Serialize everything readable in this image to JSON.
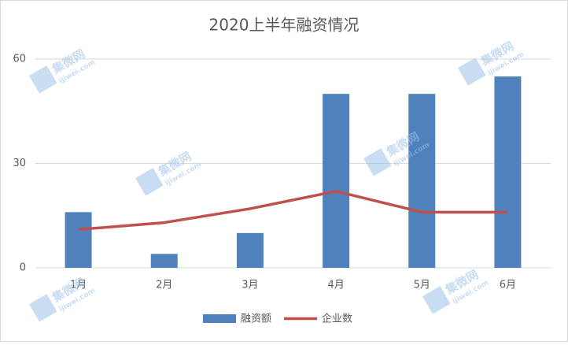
{
  "chart_data": {
    "type": "combo",
    "title": "2020上半年融资情况",
    "categories": [
      "1月",
      "2月",
      "3月",
      "4月",
      "5月",
      "6月"
    ],
    "series": [
      {
        "name": "融资额",
        "type": "bar",
        "color": "#4f81bd",
        "values": [
          16,
          4,
          10,
          50,
          50,
          55
        ]
      },
      {
        "name": "企业数",
        "type": "line",
        "color": "#c0504d",
        "values": [
          11,
          13,
          17,
          22,
          16,
          16
        ]
      }
    ],
    "ylim": [
      0,
      60
    ],
    "yticks": [
      0,
      30,
      60
    ],
    "grid": true,
    "legend": "bottom",
    "watermark": "集微网",
    "watermark_url": "ijiwei.com"
  }
}
